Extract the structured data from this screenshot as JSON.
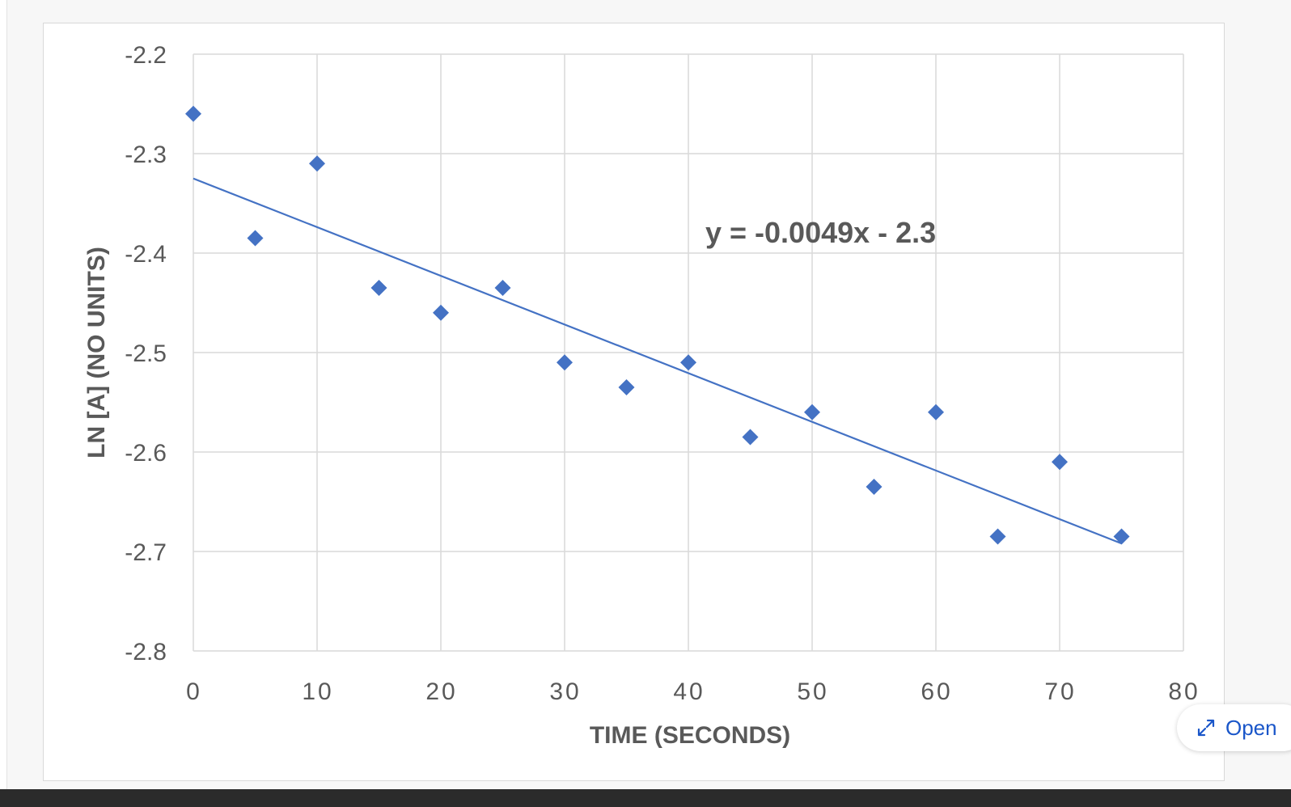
{
  "chart_data": {
    "type": "scatter",
    "title": "",
    "xlabel": "TIME (SECONDS)",
    "ylabel": "LN [A] (NO UNITS)",
    "xlim": [
      0,
      80
    ],
    "ylim": [
      -2.8,
      -2.2
    ],
    "x_ticks": [
      "0",
      "10",
      "20",
      "30",
      "40",
      "50",
      "60",
      "70",
      "80"
    ],
    "y_ticks": [
      "-2.2",
      "-2.3",
      "-2.4",
      "-2.5",
      "-2.6",
      "-2.7",
      "-2.8"
    ],
    "grid": true,
    "series": [
      {
        "x": [
          0,
          5,
          10,
          15,
          20,
          25,
          30,
          35,
          40,
          45,
          50,
          55,
          60,
          65,
          70,
          75
        ],
        "y": [
          -2.26,
          -2.385,
          -2.31,
          -2.435,
          -2.46,
          -2.435,
          -2.51,
          -2.535,
          -2.51,
          -2.585,
          -2.56,
          -2.635,
          -2.56,
          -2.685,
          -2.61,
          -2.685
        ],
        "color": "#4472c4",
        "marker": "diamond"
      }
    ],
    "trendline": {
      "x_range": [
        0,
        75
      ],
      "y_range": [
        -2.325,
        -2.692
      ],
      "color": "#4472c4",
      "equation": "y = -0.0049x - 2.3"
    }
  },
  "ui": {
    "open_button_label": "Open"
  }
}
